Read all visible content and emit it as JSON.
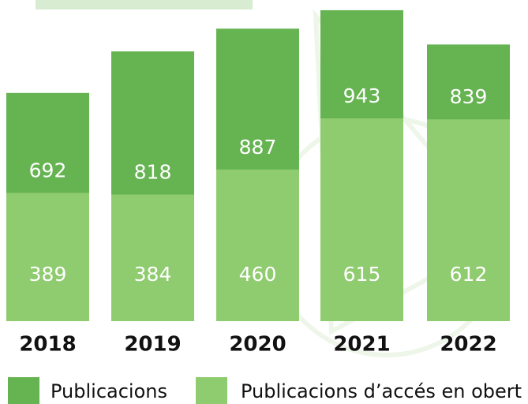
{
  "chart_data": {
    "type": "bar",
    "categories": [
      "2018",
      "2019",
      "2020",
      "2021",
      "2022"
    ],
    "series": [
      {
        "name": "Publicacions",
        "color": "#65b351",
        "values": [
          692,
          818,
          887,
          943,
          839
        ]
      },
      {
        "name": "Publicacions d’accés en obert",
        "color": "#8fcb6f",
        "values": [
          389,
          384,
          460,
          615,
          612
        ]
      }
    ],
    "ylim": [
      0,
      950
    ]
  }
}
